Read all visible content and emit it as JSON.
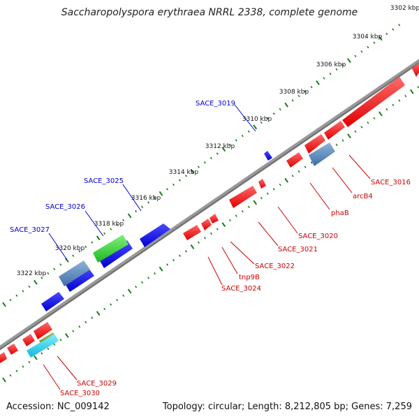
{
  "title": "Saccharopolyspora erythraea NRRL 2338, complete genome",
  "accession": "Accession: NC_009142",
  "summary": "Topology: circular; Length: 8,212,805 bp; Genes: 7,259",
  "colors": {
    "backbone": "#808080",
    "ticks": "#1a7a1a",
    "forward_gene": "#0000ff",
    "reverse_gene": "#ff0000",
    "forward_label": "#0000cc",
    "reverse_label": "#cc0000"
  },
  "scale_ticks": [
    {
      "label": "3302 kbp",
      "kbp": 3302
    },
    {
      "label": "3304 kbp",
      "kbp": 3304
    },
    {
      "label": "3306 kbp",
      "kbp": 3306
    },
    {
      "label": "3308 kbp",
      "kbp": 3308
    },
    {
      "label": "3310 kbp",
      "kbp": 3310
    },
    {
      "label": "3312 kbp",
      "kbp": 3312
    },
    {
      "label": "3314 kbp",
      "kbp": 3314
    },
    {
      "label": "3316 kbp",
      "kbp": 3316
    },
    {
      "label": "3318 kbp",
      "kbp": 3318
    },
    {
      "label": "3320 kbp",
      "kbp": 3320
    },
    {
      "label": "3322 kbp",
      "kbp": 3322
    }
  ],
  "gene_labels": [
    {
      "name": "SACE_3016",
      "strand": "reverse"
    },
    {
      "name": "arcB4",
      "strand": "reverse"
    },
    {
      "name": "phaB",
      "strand": "reverse"
    },
    {
      "name": "SACE_3019",
      "strand": "forward"
    },
    {
      "name": "SACE_3020",
      "strand": "reverse"
    },
    {
      "name": "SACE_3021",
      "strand": "reverse"
    },
    {
      "name": "SACE_3022",
      "strand": "reverse"
    },
    {
      "name": "tnp9B",
      "strand": "reverse"
    },
    {
      "name": "SACE_3024",
      "strand": "reverse"
    },
    {
      "name": "SACE_3025",
      "strand": "forward"
    },
    {
      "name": "SACE_3026",
      "strand": "forward"
    },
    {
      "name": "SACE_3027",
      "strand": "forward"
    },
    {
      "name": "SACE_3029",
      "strand": "reverse"
    },
    {
      "name": "SACE_3030",
      "strand": "reverse"
    }
  ]
}
